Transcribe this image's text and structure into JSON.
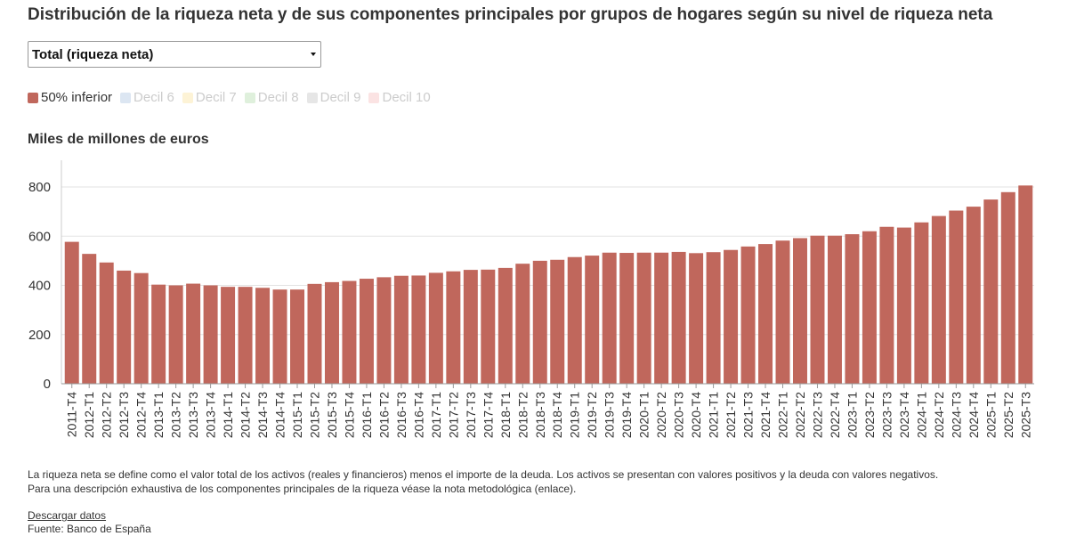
{
  "title": "Distribución de la riqueza neta y de sus componentes principales por grupos de hogares según su nivel de riqueza neta",
  "selector": {
    "selected": "Total (riqueza neta)"
  },
  "legend": {
    "items": [
      {
        "label": "50% inferior",
        "color": "#c0675c",
        "active": true
      },
      {
        "label": "Decil 6",
        "color": "#dce6f2",
        "active": false
      },
      {
        "label": "Decil 7",
        "color": "#fdf3d6",
        "active": false
      },
      {
        "label": "Decil 8",
        "color": "#dff0dc",
        "active": false
      },
      {
        "label": "Decil 9",
        "color": "#e6e6e6",
        "active": false
      },
      {
        "label": "Decil 10",
        "color": "#fbe3e3",
        "active": false
      }
    ]
  },
  "unit_label": "Miles de millones de euros",
  "chart_data": {
    "type": "bar",
    "title": "Distribución de la riqueza neta y de sus componentes principales por grupos de hogares según su nivel de riqueza neta",
    "xlabel": "",
    "ylabel": "Miles de millones de euros",
    "ylim": [
      0,
      900
    ],
    "yticks": [
      0,
      200,
      400,
      600,
      800
    ],
    "grid": true,
    "bar_color": "#c0675c",
    "categories": [
      "2011-T4",
      "2012-T1",
      "2012-T2",
      "2012-T3",
      "2012-T4",
      "2013-T1",
      "2013-T2",
      "2013-T3",
      "2013-T4",
      "2014-T1",
      "2014-T2",
      "2014-T3",
      "2014-T4",
      "2015-T1",
      "2015-T2",
      "2015-T3",
      "2015-T4",
      "2016-T1",
      "2016-T2",
      "2016-T3",
      "2016-T4",
      "2017-T1",
      "2017-T2",
      "2017-T3",
      "2017-T4",
      "2018-T1",
      "2018-T2",
      "2018-T3",
      "2018-T4",
      "2019-T1",
      "2019-T2",
      "2019-T3",
      "2019-T4",
      "2020-T1",
      "2020-T2",
      "2020-T3",
      "2020-T4",
      "2021-T1",
      "2021-T2",
      "2021-T3",
      "2021-T4",
      "2022-T1",
      "2022-T2",
      "2022-T3",
      "2022-T4",
      "2023-T1",
      "2023-T2",
      "2023-T3",
      "2023-T4",
      "2024-T1",
      "2024-T2",
      "2024-T3",
      "2024-T4",
      "2025-T1",
      "2025-T2",
      "2025-T3"
    ],
    "series": [
      {
        "name": "50% inferior",
        "values": [
          577,
          528,
          493,
          460,
          450,
          403,
          400,
          407,
          400,
          394,
          394,
          390,
          383,
          383,
          406,
          413,
          418,
          427,
          433,
          439,
          440,
          451,
          457,
          463,
          464,
          471,
          488,
          500,
          504,
          515,
          521,
          533,
          532,
          533,
          533,
          536,
          531,
          535,
          544,
          558,
          568,
          582,
          592,
          602,
          602,
          608,
          620,
          638,
          635,
          656,
          682,
          704,
          720,
          749,
          779,
          806
        ]
      }
    ]
  },
  "footer": {
    "note1": "La riqueza neta se define como el valor total de los activos (reales y financieros) menos el importe de la deuda. Los activos se presentan con valores positivos y la deuda con valores negativos.",
    "note2": "Para una descripción exhaustiva de los componentes principales de la riqueza véase la nota metodológica (enlace).",
    "download": "Descargar datos",
    "source": "Fuente: Banco de España"
  }
}
